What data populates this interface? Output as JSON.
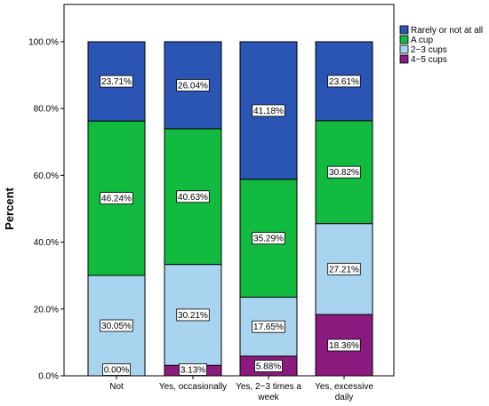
{
  "chart_data": {
    "type": "bar",
    "stacked": true,
    "categories": [
      "Not",
      "Yes, occasionally",
      "Yes, 2−3 times a week",
      "Yes, excessive daily"
    ],
    "category_tick_lines": [
      [
        "Not"
      ],
      [
        "Yes, occasionally"
      ],
      [
        "Yes, 2−3 times a",
        "week"
      ],
      [
        "Yes, excessive",
        "daily"
      ]
    ],
    "series": [
      {
        "name": "4−5 cups",
        "color": "#8b1a7e",
        "values": [
          0.0,
          3.13,
          5.88,
          18.36
        ],
        "labels": [
          "0.00%",
          "3.13%",
          "5.88%",
          "18.36%"
        ]
      },
      {
        "name": "2−3 cups",
        "color": "#a9d4f0",
        "values": [
          30.05,
          30.21,
          17.65,
          27.21
        ],
        "labels": [
          "30.05%",
          "30.21%",
          "17.65%",
          "27.21%"
        ]
      },
      {
        "name": "A cup",
        "color": "#12bb3f",
        "values": [
          46.24,
          40.63,
          35.29,
          30.82
        ],
        "labels": [
          "46.24%",
          "40.63%",
          "35.29%",
          "30.82%"
        ]
      },
      {
        "name": "Rarely or not at all",
        "color": "#2a55b5",
        "values": [
          23.71,
          26.04,
          41.18,
          23.61
        ],
        "labels": [
          "23.71%",
          "26.04%",
          "41.18%",
          "23.61%"
        ]
      }
    ],
    "legend_order": [
      "Rarely or not at all",
      "A cup",
      "2−3 cups",
      "4−5 cups"
    ],
    "legend_position": "top-right",
    "ylabel": "Percent",
    "xlabel": "",
    "ylim": [
      0,
      100
    ],
    "yticks": [
      0,
      20,
      40,
      60,
      80,
      100
    ],
    "ytick_labels": [
      "0.0%",
      "20.0%",
      "40.0%",
      "60.0%",
      "80.0%",
      "100.0%"
    ],
    "grid": false
  }
}
